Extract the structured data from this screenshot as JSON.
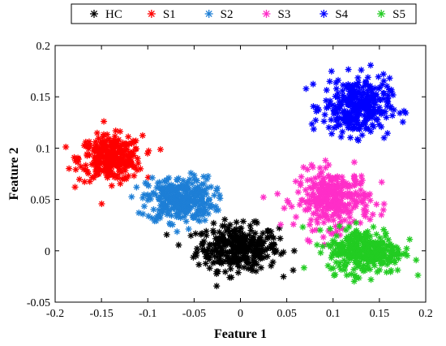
{
  "chart_data": {
    "type": "scatter",
    "xlabel": "Feature 1",
    "ylabel": "Feature 2",
    "xlim": [
      -0.2,
      0.2
    ],
    "ylim": [
      -0.05,
      0.2
    ],
    "x_ticks": [
      -0.2,
      -0.15,
      -0.1,
      -0.05,
      0,
      0.05,
      0.1,
      0.15,
      0.2
    ],
    "y_ticks": [
      -0.05,
      0,
      0.05,
      0.1,
      0.15,
      0.2
    ],
    "x_tick_labels": [
      "-0.2",
      "-0.15",
      "-0.1",
      "-0.05",
      "0",
      "0.05",
      "0.1",
      "0.15",
      "0.2"
    ],
    "y_tick_labels": [
      "-0.05",
      "0",
      "0.05",
      "0.1",
      "0.15",
      "0.2"
    ],
    "legend_position": "top",
    "grid": false,
    "marker": "asterisk",
    "series": [
      {
        "name": "HC",
        "color": "#000000",
        "center": [
          -0.003,
          0.003
        ],
        "spread": [
          0.022,
          0.011
        ],
        "points": 320
      },
      {
        "name": "S1",
        "color": "#ff0000",
        "center": [
          -0.14,
          0.09
        ],
        "spread": [
          0.017,
          0.011
        ],
        "points": 320
      },
      {
        "name": "S2",
        "color": "#1e7fd6",
        "center": [
          -0.065,
          0.05
        ],
        "spread": [
          0.018,
          0.011
        ],
        "points": 320
      },
      {
        "name": "S3",
        "color": "#ff2ec8",
        "center": [
          0.1,
          0.05
        ],
        "spread": [
          0.02,
          0.014
        ],
        "points": 320
      },
      {
        "name": "S4",
        "color": "#0000ff",
        "center": [
          0.125,
          0.14
        ],
        "spread": [
          0.018,
          0.014
        ],
        "points": 320
      },
      {
        "name": "S5",
        "color": "#22cc22",
        "center": [
          0.135,
          0.0
        ],
        "spread": [
          0.02,
          0.011
        ],
        "points": 320
      }
    ]
  }
}
